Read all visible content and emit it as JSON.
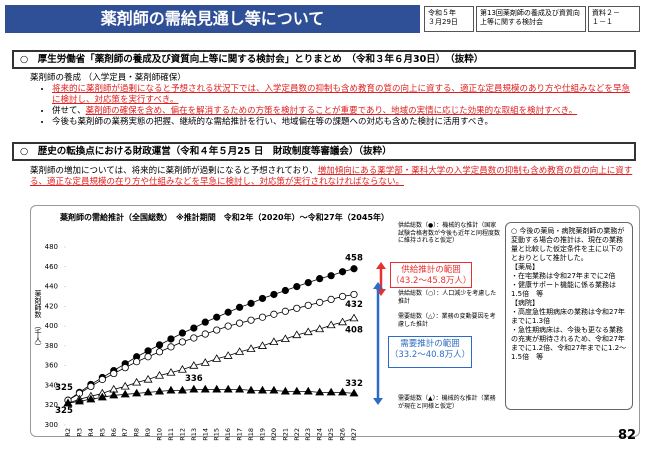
{
  "header": {
    "title": "薬剤師の需給見通し等について",
    "date": "令和５年\n３月29日",
    "meeting": "第13回薬剤師の養成及び資質向上等に関する検討会",
    "doc_id": "資料２－\n１－１"
  },
  "section1": {
    "heading": "○　厚生労働省「薬剤師の養成及び資質向上等に関する検討会」とりまとめ　（令和３年６月30日）　（抜粋）",
    "subheading": "薬剤師の養成 （入学定員・薬剤師確保）",
    "bullets": [
      [
        {
          "text": "将来的に薬剤師が過剰になると予想される状況下では、入学定員数の抑制も含め教育の質の向上に資する、適正な定員規模のあり方や仕組みなどを早急に検討し、対応策を実行すべき。",
          "emphasis": true
        }
      ],
      [
        {
          "text": "併せて、",
          "emphasis": false
        },
        {
          "text": "薬剤師の確保を含め、偏在を解消するための方策を検討することが重要であり、地域の実情に応じた効果的な取組を検討すべき。",
          "emphasis": true
        }
      ],
      [
        {
          "text": "今後も薬剤師の業務実態の把握、継続的な需給推計を行い、地域偏在等の課題への対応も含めた検討に活用すべき。",
          "emphasis": false
        }
      ]
    ]
  },
  "section2": {
    "heading": "○　歴史の転換点における財政運営（令和４年５月25 日　財政制度等審議会）（抜粋）",
    "body": [
      {
        "text": "薬剤師の増加については、将来的に薬剤師が過剰になると予想されており、",
        "emphasis": false
      },
      {
        "text": "増加傾向にある薬学部・薬科大学の入学定員数の抑制も含め教育の質の向上に資する、適正な定員規模の在り方や仕組みなどを早急に検討し、対応策が実行されなければならない。",
        "emphasis": true
      }
    ]
  },
  "chart_data": {
    "type": "line",
    "title": "薬剤師の需給推計（全国総数）　※推計期間　令和2年（2020年）～令和27年（2045年）",
    "y_label": "薬剤師数",
    "y_unit": "（千人）",
    "categories": [
      "R2",
      "R3",
      "R4",
      "R5",
      "R6",
      "R7",
      "R8",
      "R9",
      "R10",
      "R11",
      "R12",
      "R13",
      "R14",
      "R15",
      "R16",
      "R17",
      "R18",
      "R19",
      "R20",
      "R21",
      "R22",
      "R23",
      "R24",
      "R25",
      "R26",
      "R27"
    ],
    "ylim": [
      300,
      480
    ],
    "yticks": [
      300,
      320,
      340,
      360,
      380,
      400,
      420,
      440,
      460,
      480
    ],
    "grid": false,
    "series": [
      {
        "name": "供給総数（●）：機械的な推計（国家試験合格者数が今後も近年と同程度数に維持されると仮定）",
        "color": "#000000",
        "marker": "circle-filled",
        "values": [
          325,
          333,
          341,
          348,
          355,
          362,
          369,
          375,
          381,
          387,
          393,
          398,
          404,
          409,
          414,
          419,
          423,
          428,
          432,
          436,
          440,
          444,
          448,
          451,
          455,
          458
        ]
      },
      {
        "name": "供給総数（○）：人口減少を考慮した推計",
        "color": "#000000",
        "marker": "circle-open",
        "values": [
          325,
          332,
          339,
          346,
          352,
          358,
          364,
          369,
          374,
          379,
          384,
          388,
          392,
          396,
          400,
          403,
          406,
          409,
          412,
          415,
          418,
          421,
          424,
          427,
          430,
          432
        ]
      },
      {
        "name": "需要総数（△）：業務の変動要因を考慮した推計",
        "color": "#000000",
        "marker": "triangle-open",
        "values": [
          322,
          326,
          329,
          332,
          336,
          339,
          343,
          346,
          350,
          353,
          356,
          360,
          363,
          367,
          370,
          374,
          377,
          380,
          384,
          387,
          391,
          394,
          397,
          401,
          404,
          408
        ]
      },
      {
        "name": "需要総数（▲）：機械的な推計（業務が現在と同様と仮定）",
        "color": "#000000",
        "marker": "triangle-filled",
        "values": [
          322,
          324,
          326,
          328,
          330,
          331,
          332,
          333,
          334,
          335,
          335,
          336,
          336,
          336,
          336,
          336,
          335,
          335,
          335,
          334,
          334,
          334,
          333,
          333,
          333,
          332
        ]
      }
    ],
    "ranges": [
      {
        "title": "供給推計の範囲",
        "detail": "（43.2～45.8万人）",
        "color": "#e8312f"
      },
      {
        "title": "需要推計の範囲",
        "detail": "（33.2～40.8万人）",
        "color": "#2e6bc4"
      }
    ]
  },
  "side_note": [
    "○ 今後の薬局・病院薬剤師の業務が変動する場合の推計は、現在の業務量と比較した仮定条件を主に以下のとおりとして推計した。",
    "【薬局】",
    "・在宅業務は令和27年までに2倍",
    "・健康サポート機能に係る業務は1.5倍　等",
    "【病院】",
    "・高度急性期病床の業務は令和27年までに1.3倍",
    "・急性期病床は、今後も更なる業務の充実が期待されるため、令和27年までに1.2倍、令和27年までに1.2～1.5倍　等"
  ],
  "page_number": "82"
}
